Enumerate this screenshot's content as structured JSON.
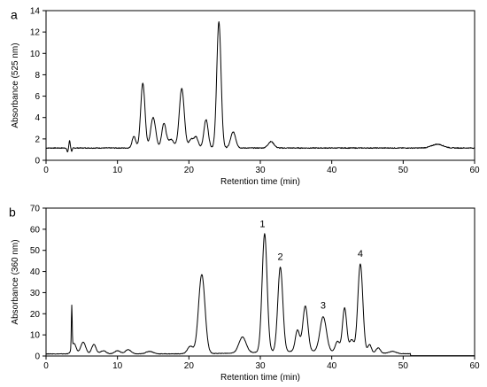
{
  "chart_data": [
    {
      "type": "line",
      "panel_label": "a",
      "xlabel": "Retention time (min)",
      "ylabel": "Absorbance (525 nm)",
      "xlim": [
        0,
        60
      ],
      "ylim": [
        0,
        14
      ],
      "xticks": [
        "0",
        "10",
        "20",
        "30",
        "40",
        "50",
        "60"
      ],
      "yticks": [
        "0",
        "2",
        "4",
        "6",
        "8",
        "10",
        "12",
        "14"
      ],
      "grid": false,
      "baseline": 1.15,
      "series": [
        {
          "peaks": [
            {
              "rt": 3.0,
              "height": -0.4,
              "width": 0.08
            },
            {
              "rt": 3.3,
              "height": 0.7,
              "width": 0.08
            },
            {
              "rt": 3.6,
              "height": -0.3,
              "width": 0.08
            },
            {
              "rt": 12.3,
              "height": 1.1,
              "width": 0.25
            },
            {
              "rt": 13.55,
              "height": 6.05,
              "width": 0.3
            },
            {
              "rt": 15.0,
              "height": 2.85,
              "width": 0.35
            },
            {
              "rt": 16.5,
              "height": 2.3,
              "width": 0.3
            },
            {
              "rt": 17.5,
              "height": 0.8,
              "width": 0.4
            },
            {
              "rt": 19.0,
              "height": 5.55,
              "width": 0.35
            },
            {
              "rt": 20.3,
              "height": 0.8,
              "width": 0.3
            },
            {
              "rt": 21.0,
              "height": 1.0,
              "width": 0.3
            },
            {
              "rt": 22.4,
              "height": 2.65,
              "width": 0.3
            },
            {
              "rt": 24.2,
              "height": 11.8,
              "width": 0.3
            },
            {
              "rt": 26.2,
              "height": 1.5,
              "width": 0.35
            },
            {
              "rt": 31.5,
              "height": 0.6,
              "width": 0.4
            },
            {
              "rt": 54.8,
              "height": 0.35,
              "width": 0.8
            }
          ]
        }
      ]
    },
    {
      "type": "line",
      "panel_label": "b",
      "xlabel": "Retention time (min)",
      "ylabel": "Absorbance (360 nm)",
      "xlim": [
        0,
        60
      ],
      "ylim": [
        0,
        70
      ],
      "xticks": [
        "0",
        "10",
        "20",
        "30",
        "40",
        "50",
        "60"
      ],
      "yticks": [
        "0",
        "10",
        "20",
        "30",
        "40",
        "50",
        "60",
        "70"
      ],
      "grid": false,
      "baseline": 1.0,
      "series": [
        {
          "peaks": [
            {
              "rt": 3.6,
              "height": 20.0,
              "width": 0.06
            },
            {
              "rt": 3.9,
              "height": 5.0,
              "width": 0.3
            },
            {
              "rt": 5.2,
              "height": 5.5,
              "width": 0.35
            },
            {
              "rt": 6.7,
              "height": 4.5,
              "width": 0.3
            },
            {
              "rt": 8.0,
              "height": 1.5,
              "width": 0.4
            },
            {
              "rt": 10.0,
              "height": 1.5,
              "width": 0.4
            },
            {
              "rt": 11.5,
              "height": 2.0,
              "width": 0.4
            },
            {
              "rt": 14.5,
              "height": 1.2,
              "width": 0.5
            },
            {
              "rt": 20.2,
              "height": 3.5,
              "width": 0.4
            },
            {
              "rt": 21.8,
              "height": 37.5,
              "width": 0.45
            },
            {
              "rt": 27.5,
              "height": 7.5,
              "width": 0.5
            },
            {
              "rt": 30.6,
              "height": 56.0,
              "width": 0.35
            },
            {
              "rt": 32.8,
              "height": 40.0,
              "width": 0.35
            },
            {
              "rt": 35.2,
              "height": 10.0,
              "width": 0.3
            },
            {
              "rt": 36.3,
              "height": 21.5,
              "width": 0.35
            },
            {
              "rt": 38.8,
              "height": 16.5,
              "width": 0.45
            },
            {
              "rt": 40.8,
              "height": 5.0,
              "width": 0.3
            },
            {
              "rt": 41.8,
              "height": 21.0,
              "width": 0.3
            },
            {
              "rt": 42.8,
              "height": 6.0,
              "width": 0.3
            },
            {
              "rt": 44.0,
              "height": 42.0,
              "width": 0.35
            },
            {
              "rt": 45.3,
              "height": 4.0,
              "width": 0.25
            },
            {
              "rt": 46.5,
              "height": 2.5,
              "width": 0.3
            },
            {
              "rt": 48.5,
              "height": 1.0,
              "width": 0.5
            }
          ],
          "end_rt": 51.0
        }
      ],
      "annotations": [
        {
          "text": "1",
          "x": 30.3,
          "y": 61.0
        },
        {
          "text": "2",
          "x": 32.8,
          "y": 45.5
        },
        {
          "text": "3",
          "x": 38.8,
          "y": 22.5
        },
        {
          "text": "4",
          "x": 44.0,
          "y": 47.0
        }
      ]
    }
  ]
}
